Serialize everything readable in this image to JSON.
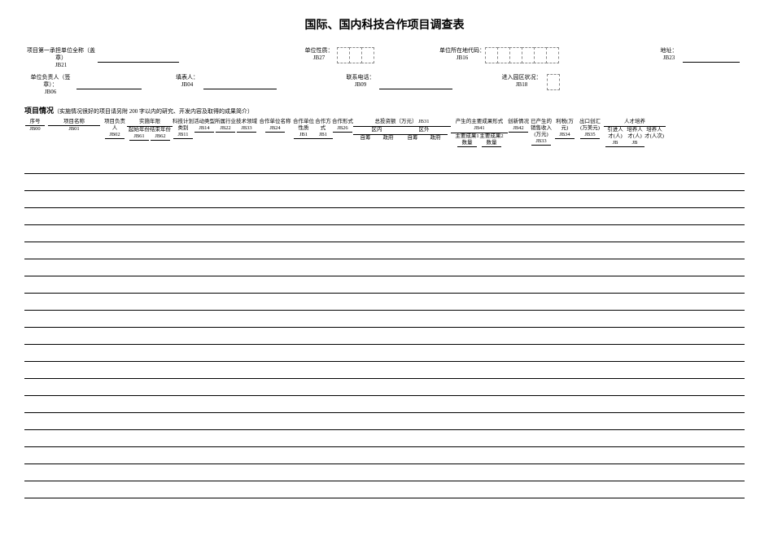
{
  "title": "国际、国内科技合作项目调查表",
  "header_fields": {
    "unit_full": {
      "label": "项目第一承担单位全称（盖章）",
      "code": "JB21"
    },
    "unit_nature": {
      "label": "单位性质：",
      "code": "JB27"
    },
    "unit_loc_code": {
      "label": "单位所在地代码：",
      "code": "JB16"
    },
    "address": {
      "label": "地址：",
      "code": "JB23"
    },
    "unit_head": {
      "label": "单位负责人（签章）：",
      "code": "JB06"
    },
    "filler": {
      "label": "填表人：",
      "code": "JB04"
    },
    "phone": {
      "label": "联系电话：",
      "code": "JB09"
    },
    "park_status": {
      "label": "进入园区状况：",
      "code": "JB18"
    }
  },
  "section": {
    "title": "项目情况",
    "note": "（实施情况很好的项目请另附 200 字以内的研究、开发内容及取得的成果简介）"
  },
  "cols": {
    "seq": {
      "label": "序号",
      "code": "JB00"
    },
    "name": {
      "label": "项目名称",
      "code": "JB01"
    },
    "leader": {
      "label": "项目负责人",
      "code": "JB02"
    },
    "impl_period": {
      "label": "实施年限"
    },
    "start": {
      "label": "起始年份",
      "code": "JB61"
    },
    "end": {
      "label": "结束年份",
      "code": "JB62"
    },
    "plan": {
      "label": "科技计划类别",
      "code": "JB11"
    },
    "act": {
      "label": "活动类型",
      "code": "JB14"
    },
    "indu": {
      "label": "所属行业",
      "code": "JB22"
    },
    "tech": {
      "label": "技术领域",
      "code": "JB33_a"
    },
    "partner": {
      "label": "合作单位名称",
      "code": "JB24"
    },
    "pnature": {
      "label": "合作单位性质",
      "code": "JB1"
    },
    "pmode": {
      "label": "合作方式",
      "code": "JB1b"
    },
    "pform": {
      "label": "合作形式",
      "code": "JB26"
    },
    "invest": {
      "label": "总投资额（万元）",
      "code": "JB31"
    },
    "region_in": {
      "label": "区内"
    },
    "region_out": {
      "label": "区外"
    },
    "self": {
      "label": "自筹"
    },
    "gov": {
      "label": "政府"
    },
    "qty": {
      "label": "数量"
    },
    "result_form": {
      "label": "产生的主要成果形式",
      "code": "JB41"
    },
    "main1": {
      "label": "主要成果1"
    },
    "main2": {
      "label": "主要成果2"
    },
    "innov": {
      "label": "创新情况",
      "code": "JB42"
    },
    "prod": {
      "label": "已产生的"
    },
    "sales": {
      "label": "销售收入(万元)",
      "code": "JB33"
    },
    "profit": {
      "label": "利税(万元)",
      "code": "JB34"
    },
    "export": {
      "label": "出口创汇(万美元)",
      "code": "JB35"
    },
    "talent": {
      "label": "人才培养"
    },
    "t_in": {
      "label": "引进人才(人)",
      "code": "JB"
    },
    "t_train": {
      "label": "培养人才(人)",
      "code": "JB"
    },
    "t_out": {
      "label": "培养人才(人次)"
    }
  },
  "codes_small": {
    "jb33": "JB33",
    "jb34": "JB34",
    "jb35": "JB35",
    "jb41": "JB41",
    "jb42": "JB42"
  },
  "style": {
    "text_color": "#000000",
    "bg": "#ffffff",
    "dash_border": "#888888",
    "title_fontsize": 14,
    "field_fontsize": 7,
    "header_fontsize": 6.5,
    "data_row_count": 20,
    "data_row_height": 14
  }
}
